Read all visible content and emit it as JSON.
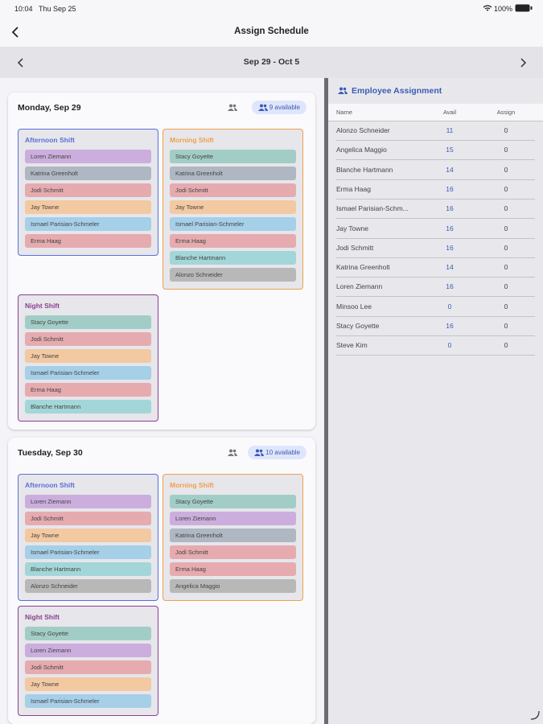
{
  "status": {
    "time": "10:04",
    "date": "Thu Sep 25",
    "battery": "100%"
  },
  "header": {
    "title": "Assign Schedule"
  },
  "week": {
    "range": "Sep 29 - Oct 5"
  },
  "days": [
    {
      "date": "Monday, Sep 29",
      "available": "9 available",
      "shifts": [
        {
          "name": "Afternoon Shift",
          "color": "#5b6fd6",
          "employees": [
            {
              "name": "Loren Ziemann",
              "color": "#cbaedd"
            },
            {
              "name": "Katrina Greenholt",
              "color": "#aeb7c2"
            },
            {
              "name": "Jodi Schmitt",
              "color": "#e6abaf"
            },
            {
              "name": "Jay Towne",
              "color": "#f3c9a2"
            },
            {
              "name": "Ismael Parisian-Schmeler",
              "color": "#a6cfe8"
            },
            {
              "name": "Erma Haag",
              "color": "#e6abaf"
            }
          ]
        },
        {
          "name": "Morning Shift",
          "color": "#f0a04b",
          "employees": [
            {
              "name": "Stacy Goyette",
              "color": "#a2cdc6"
            },
            {
              "name": "Katrina Greenholt",
              "color": "#aeb7c2"
            },
            {
              "name": "Jodi Schmitt",
              "color": "#e6abaf"
            },
            {
              "name": "Jay Towne",
              "color": "#f3c9a2"
            },
            {
              "name": "Ismael Parisian-Schmeler",
              "color": "#a6cfe8"
            },
            {
              "name": "Erma Haag",
              "color": "#e6abaf"
            },
            {
              "name": "Blanche Hartmann",
              "color": "#a3d6d8"
            },
            {
              "name": "Alonzo Schneider",
              "color": "#b8b8b8"
            }
          ]
        },
        {
          "name": "Night Shift",
          "color": "#8a3f8f",
          "employees": [
            {
              "name": "Stacy Goyette",
              "color": "#a2cdc6"
            },
            {
              "name": "Jodi Schmitt",
              "color": "#e6abaf"
            },
            {
              "name": "Jay Towne",
              "color": "#f3c9a2"
            },
            {
              "name": "Ismael Parisian-Schmeler",
              "color": "#a6cfe8"
            },
            {
              "name": "Erma Haag",
              "color": "#e6abaf"
            },
            {
              "name": "Blanche Hartmann",
              "color": "#a3d6d8"
            }
          ]
        }
      ]
    },
    {
      "date": "Tuesday, Sep 30",
      "available": "10 available",
      "shifts": [
        {
          "name": "Afternoon Shift",
          "color": "#5b6fd6",
          "employees": [
            {
              "name": "Loren Ziemann",
              "color": "#cbaedd"
            },
            {
              "name": "Jodi Schmitt",
              "color": "#e6abaf"
            },
            {
              "name": "Jay Towne",
              "color": "#f3c9a2"
            },
            {
              "name": "Ismael Parisian-Schmeler",
              "color": "#a6cfe8"
            },
            {
              "name": "Blanche Hartmann",
              "color": "#a3d6d8"
            },
            {
              "name": "Alonzo Schneider",
              "color": "#b8b8b8"
            }
          ]
        },
        {
          "name": "Morning Shift",
          "color": "#f0a04b",
          "employees": [
            {
              "name": "Stacy Goyette",
              "color": "#a2cdc6"
            },
            {
              "name": "Loren Ziemann",
              "color": "#cbaedd"
            },
            {
              "name": "Katrina Greenholt",
              "color": "#aeb7c2"
            },
            {
              "name": "Jodi Schmitt",
              "color": "#e6abaf"
            },
            {
              "name": "Erma Haag",
              "color": "#e6abaf"
            },
            {
              "name": "Angelica Maggio",
              "color": "#b8b8b8"
            }
          ]
        },
        {
          "name": "Night Shift",
          "color": "#8a3f8f",
          "employees": [
            {
              "name": "Stacy Goyette",
              "color": "#a2cdc6"
            },
            {
              "name": "Loren Ziemann",
              "color": "#cbaedd"
            },
            {
              "name": "Jodi Schmitt",
              "color": "#e6abaf"
            },
            {
              "name": "Jay Towne",
              "color": "#f3c9a2"
            },
            {
              "name": "Ismael Parisian-Schmeler",
              "color": "#a6cfe8"
            }
          ]
        }
      ]
    }
  ],
  "panel": {
    "title": "Employee Assignment",
    "columns": [
      "Name",
      "Avail",
      "Assign"
    ],
    "rows": [
      [
        "Alonzo Schneider",
        11,
        0
      ],
      [
        "Angelica Maggio",
        15,
        0
      ],
      [
        "Blanche Hartmann",
        14,
        0
      ],
      [
        "Erma Haag",
        16,
        0
      ],
      [
        "Ismael Parisian-Schm...",
        16,
        0
      ],
      [
        "Jay Towne",
        16,
        0
      ],
      [
        "Jodi Schmitt",
        16,
        0
      ],
      [
        "Katrina Greenholt",
        14,
        0
      ],
      [
        "Loren Ziemann",
        16,
        0
      ],
      [
        "Minsoo Lee",
        0,
        0
      ],
      [
        "Stacy Goyette",
        16,
        0
      ],
      [
        "Steve Kim",
        0,
        0
      ]
    ]
  }
}
